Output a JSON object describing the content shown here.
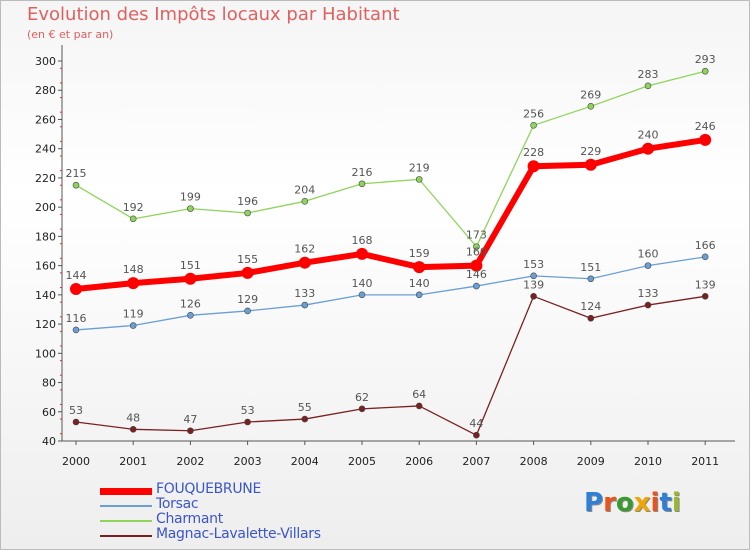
{
  "header": {
    "title": "Evolution des Impôts locaux par Habitant",
    "subtitle": "(en € et par an)"
  },
  "logo": {
    "text": "Proxiti",
    "colors": [
      "#2f7fd6",
      "#e8541c",
      "#3b9a2f",
      "#f0a500",
      "#e8541c",
      "#2f7fd6",
      "#9ab52f"
    ]
  },
  "chart_data": {
    "type": "line",
    "x": [
      "2000",
      "2001",
      "2002",
      "2003",
      "2004",
      "2005",
      "2006",
      "2007",
      "2008",
      "2009",
      "2010",
      "2011"
    ],
    "ylim": [
      40,
      300
    ],
    "yticks": [
      40,
      60,
      80,
      100,
      120,
      140,
      160,
      180,
      200,
      220,
      240,
      260,
      280,
      300
    ],
    "grid": false,
    "legend_position": "bottom-left",
    "series": [
      {
        "name": "FOUQUEBRUNE",
        "color": "#ff0000",
        "values": [
          144,
          148,
          151,
          155,
          162,
          168,
          159,
          160,
          228,
          229,
          240,
          246
        ]
      },
      {
        "name": "Torsac",
        "color": "#6a9fd4",
        "values": [
          116,
          119,
          126,
          129,
          133,
          140,
          140,
          146,
          153,
          151,
          160,
          166
        ]
      },
      {
        "name": "Charmant",
        "color": "#8ed45a",
        "values": [
          215,
          192,
          199,
          196,
          204,
          216,
          219,
          173,
          256,
          269,
          283,
          293
        ]
      },
      {
        "name": "Magnac-Lavalette-Villars",
        "color": "#7a2020",
        "values": [
          53,
          48,
          47,
          53,
          55,
          62,
          64,
          44,
          139,
          124,
          133,
          139
        ]
      }
    ]
  }
}
